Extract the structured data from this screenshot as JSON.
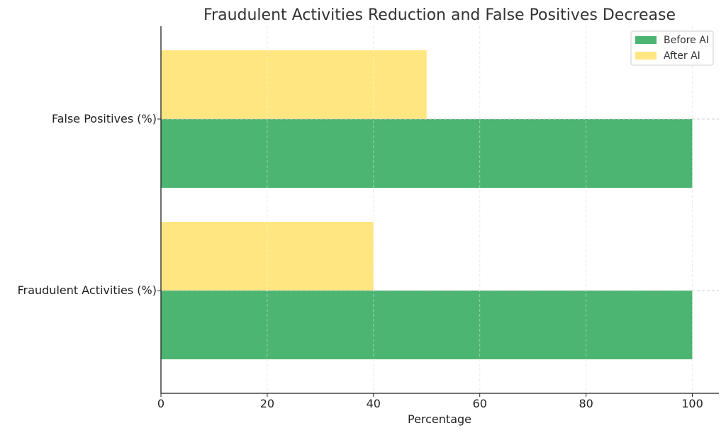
{
  "chart_data": {
    "type": "bar",
    "orientation": "horizontal",
    "title": "Fraudulent Activities Reduction and False Positives Decrease",
    "xlabel": "Percentage",
    "ylabel": "",
    "categories": [
      "Fraudulent Activities (%)",
      "False Positives (%)"
    ],
    "series": [
      {
        "name": "Before AI",
        "values": [
          100,
          100
        ],
        "color": "#4bb571"
      },
      {
        "name": "After AI",
        "values": [
          40,
          50
        ],
        "color": "#ffe680"
      }
    ],
    "xlim": [
      0,
      105
    ],
    "xticks": [
      0,
      20,
      40,
      60,
      80,
      100
    ],
    "grid": true,
    "legend_position": "top-right"
  }
}
